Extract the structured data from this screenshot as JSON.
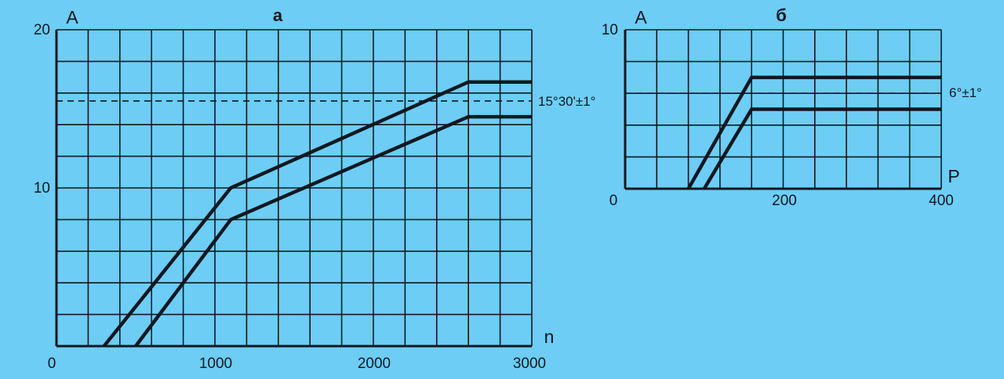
{
  "colors": {
    "background": "#6dcdf5",
    "ink": "#111820"
  },
  "chart_data": [
    {
      "type": "line",
      "title": "а",
      "xlabel": "n",
      "ylabel": "A",
      "xlim": [
        0,
        3000
      ],
      "ylim": [
        0,
        20
      ],
      "x_ticks": [
        "0",
        "1000",
        "2000",
        "3000"
      ],
      "y_ticks": [
        "10",
        "20"
      ],
      "grid": true,
      "series": [
        {
          "x": [
            300,
            1100,
            2600,
            3000
          ],
          "y": [
            0,
            10,
            16.7,
            16.7
          ]
        },
        {
          "x": [
            500,
            1100,
            2600,
            3000
          ],
          "y": [
            0,
            8,
            14.5,
            14.5
          ]
        }
      ],
      "reference_line": {
        "y": 15.5,
        "style": "dashed",
        "label": "15°30'±1°"
      }
    },
    {
      "type": "line",
      "title": "б",
      "xlabel": "P",
      "ylabel": "A",
      "xlim": [
        0,
        400
      ],
      "ylim": [
        0,
        10
      ],
      "x_ticks": [
        "0",
        "200",
        "400"
      ],
      "y_ticks": [
        "10"
      ],
      "grid": true,
      "series": [
        {
          "x": [
            80,
            160,
            400
          ],
          "y": [
            0,
            7,
            7
          ]
        },
        {
          "x": [
            100,
            160,
            400
          ],
          "y": [
            0,
            5,
            5
          ]
        }
      ],
      "reference_line": {
        "y": 6,
        "style": "dashed",
        "label": "6°±1°"
      }
    }
  ]
}
